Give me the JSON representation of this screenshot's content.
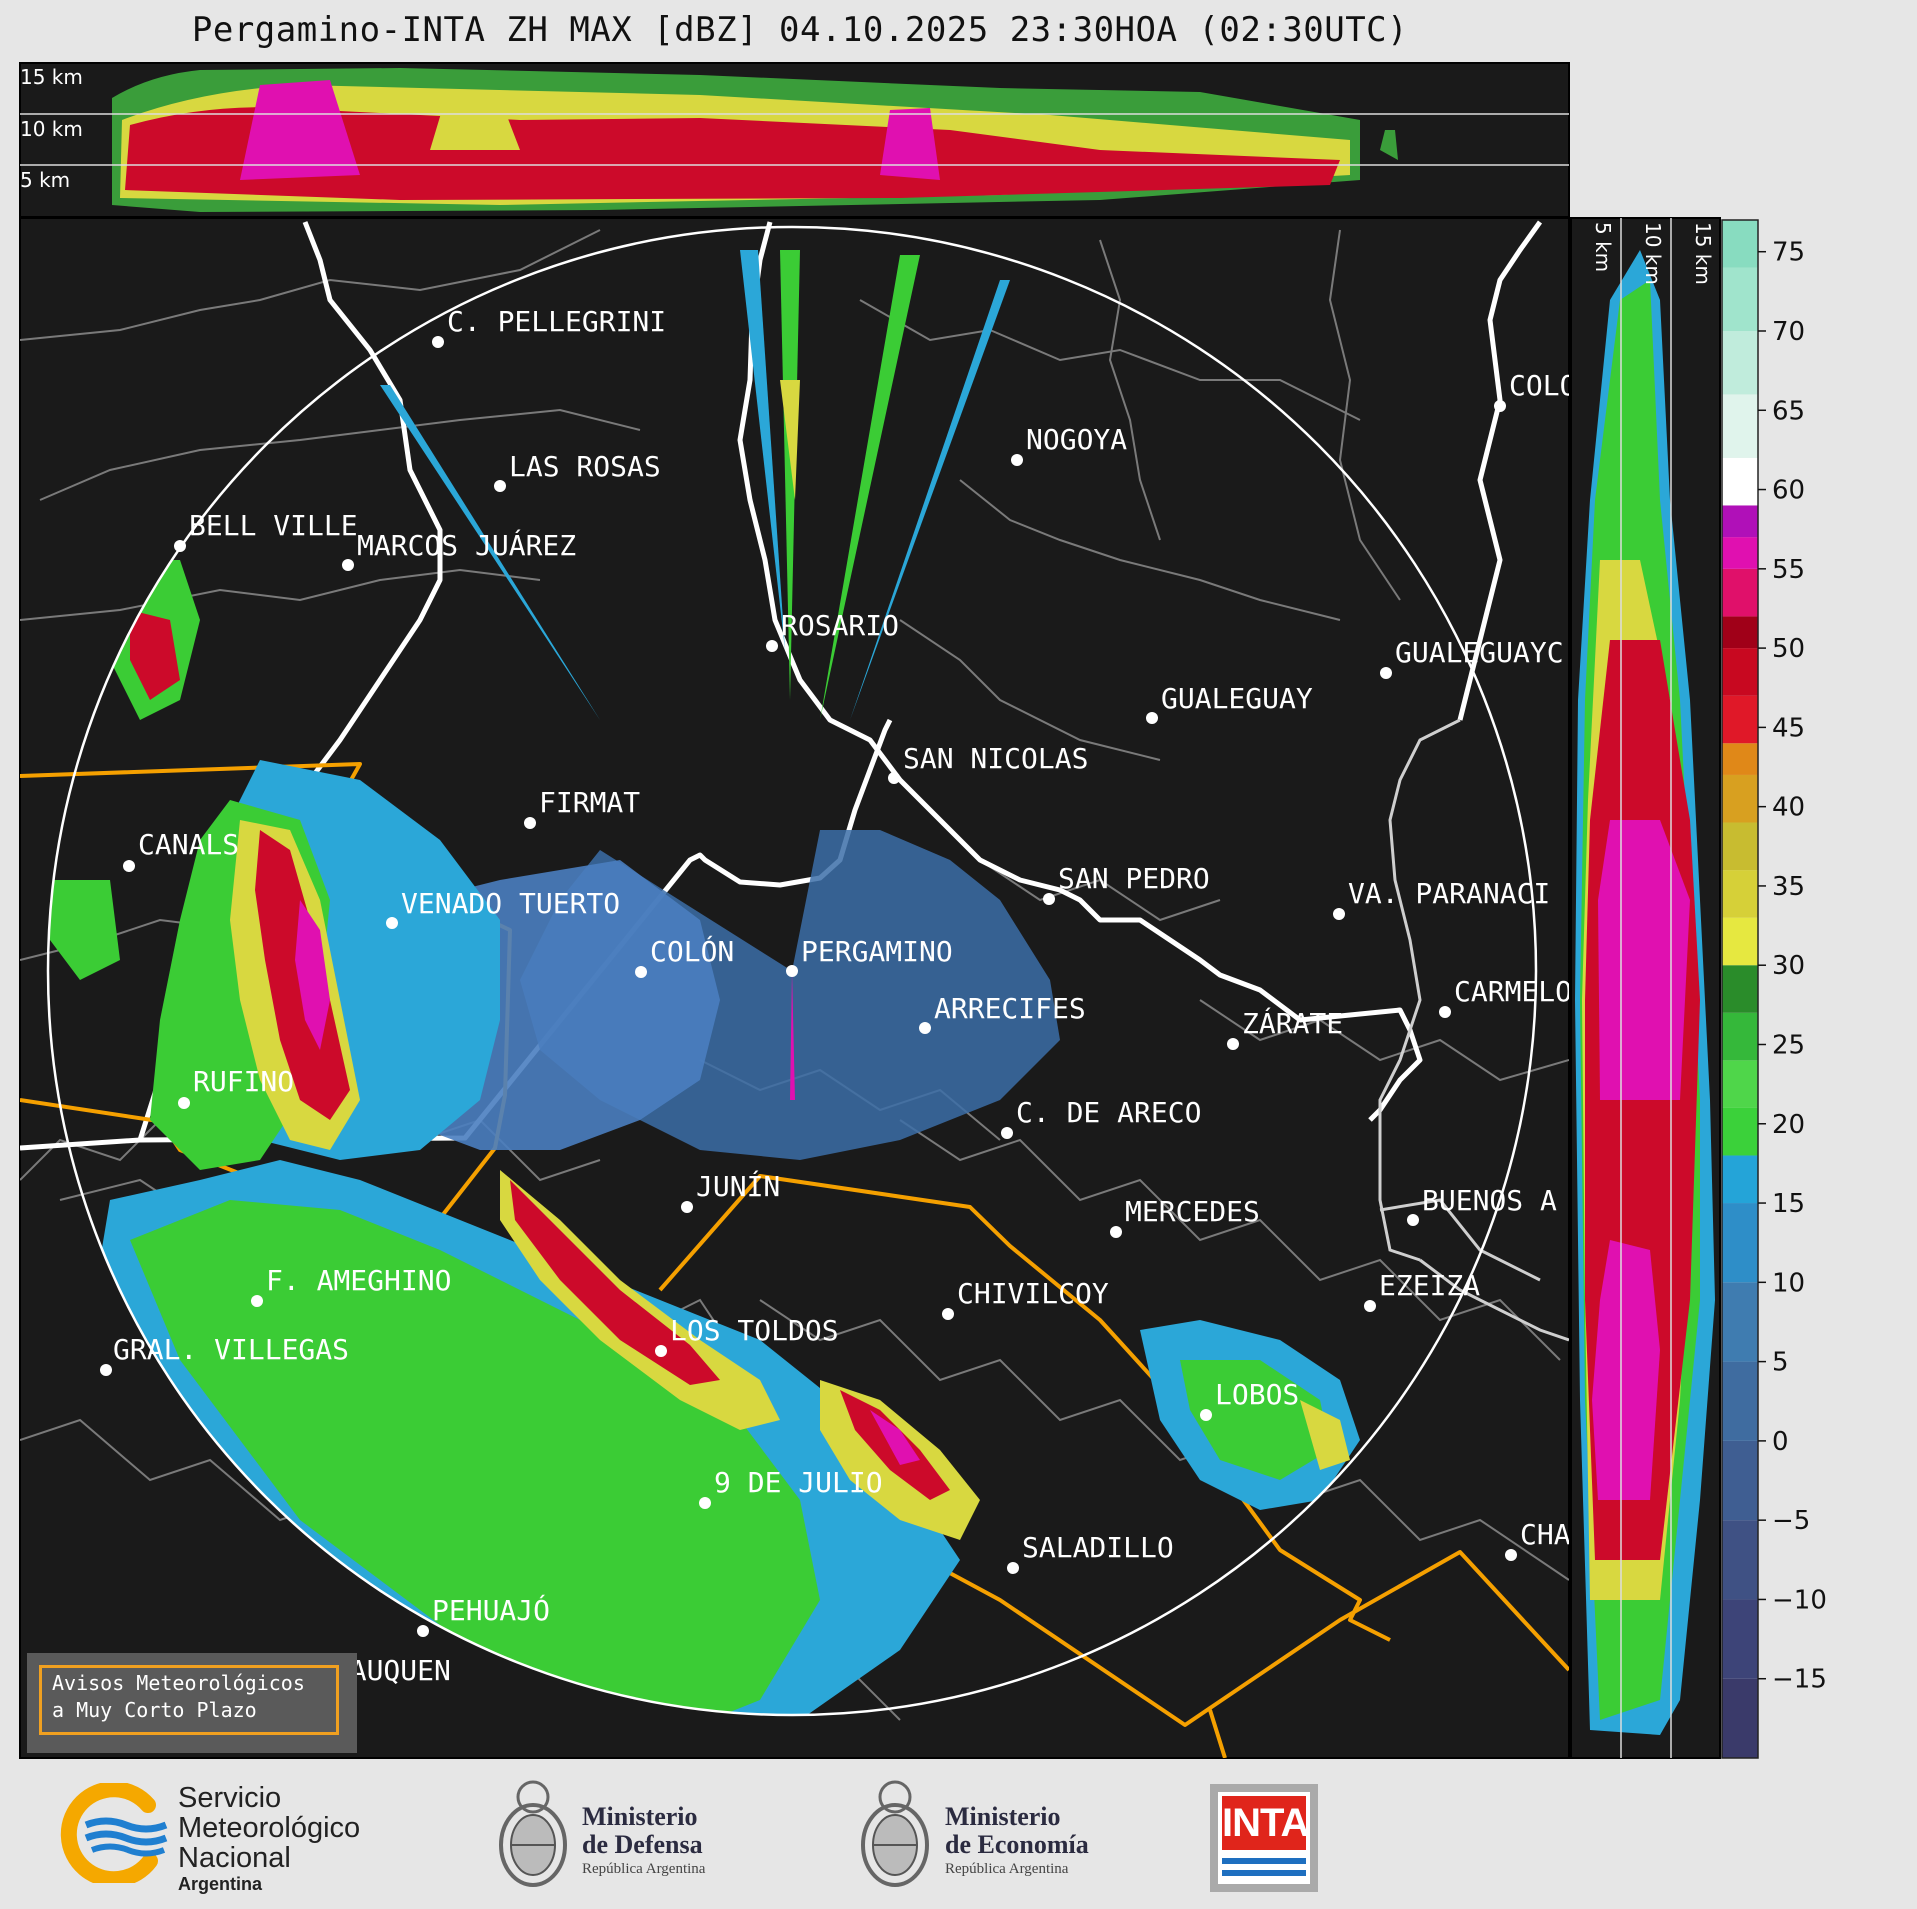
{
  "title": "Pergamino-INTA ZH MAX [dBZ] 04.10.2025 23:30HOA (02:30UTC)",
  "top_panel": {
    "height_labels": [
      "15 km",
      "10 km",
      "5 km"
    ]
  },
  "right_panel": {
    "height_labels": [
      "5 km",
      "10 km",
      "15 km"
    ]
  },
  "colorbar": {
    "ticks": [
      "75",
      "70",
      "65",
      "60",
      "55",
      "50",
      "45",
      "40",
      "35",
      "30",
      "25",
      "20",
      "15",
      "10",
      "5",
      "0",
      "−5",
      "−10",
      "−15"
    ],
    "range": [
      -20,
      77
    ]
  },
  "cities": [
    {
      "name": "C. PELLEGRINI"
    },
    {
      "name": "LAS ROSAS"
    },
    {
      "name": "NOGOYA"
    },
    {
      "name": "BELL VILLE"
    },
    {
      "name": "MARCOS JUÁREZ"
    },
    {
      "name": "ROSARIO"
    },
    {
      "name": "GUALEGUAY"
    },
    {
      "name": "GUALEGUAYC"
    },
    {
      "name": "SAN NICOLAS"
    },
    {
      "name": "FIRMAT"
    },
    {
      "name": "CANALS"
    },
    {
      "name": "SAN PEDRO"
    },
    {
      "name": "VENADO TUERTO"
    },
    {
      "name": "VA. PARANACI"
    },
    {
      "name": "COLÓN"
    },
    {
      "name": "PERGAMINO"
    },
    {
      "name": "CARMELO"
    },
    {
      "name": "ARRECIFES"
    },
    {
      "name": "ZÁRATE"
    },
    {
      "name": "RUFINO"
    },
    {
      "name": "C. DE ARECO"
    },
    {
      "name": "JUNÍN"
    },
    {
      "name": "BUENOS A"
    },
    {
      "name": "MERCEDES"
    },
    {
      "name": "F. AMEGHINO"
    },
    {
      "name": "EZEIZA"
    },
    {
      "name": "CHIVILCOY"
    },
    {
      "name": "LOS TOLDOS"
    },
    {
      "name": "GRAL. VILLEGAS"
    },
    {
      "name": "LOBOS"
    },
    {
      "name": "9 DE JULIO"
    },
    {
      "name": "SALADILLO"
    },
    {
      "name": "CHA"
    },
    {
      "name": "PEHUAJÓ"
    },
    {
      "name": "TRENQUE LAUQUEN"
    },
    {
      "name": "COLO"
    }
  ],
  "warning_box": {
    "line1": "Avisos Meteorológicos",
    "line2": "a Muy Corto Plazo"
  },
  "footer": {
    "smn": {
      "line1": "Servicio",
      "line2": "Meteorológico",
      "line3": "Nacional",
      "line4": "Argentina"
    },
    "defensa": {
      "line1": "Ministerio",
      "line2": "de Defensa",
      "sub": "República Argentina"
    },
    "economia": {
      "line1": "Ministerio",
      "line2": "de Economía",
      "sub": "República Argentina"
    },
    "inta": "INTA"
  },
  "colors": {
    "background": "#1a1a1a",
    "warning_outline": "#f5a000",
    "boundary_major": "#ffffff",
    "boundary_minor": "#7a7a7a"
  }
}
